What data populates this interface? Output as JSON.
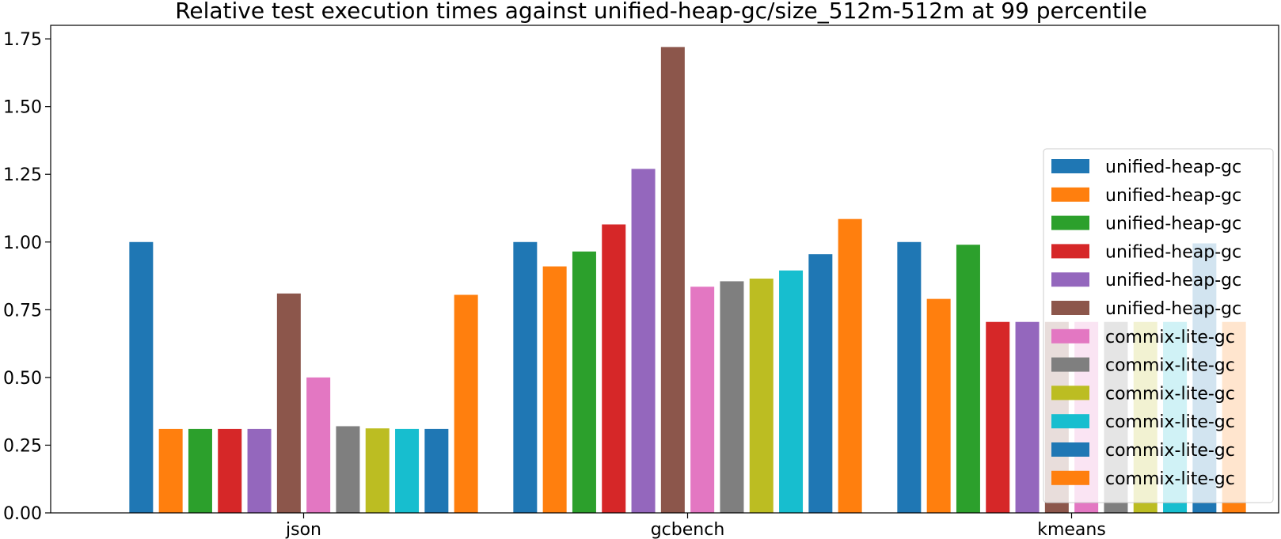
{
  "chart_data": {
    "type": "bar",
    "title": "Relative test execution times against unified-heap-gc/size_512m-512m at 99 percentile",
    "xlabel": "",
    "ylabel": "",
    "categories": [
      "json",
      "gcbench",
      "kmeans"
    ],
    "ylim": [
      0,
      1.8
    ],
    "yticks": [
      0.0,
      0.25,
      0.5,
      0.75,
      1.0,
      1.25,
      1.5,
      1.75
    ],
    "ytick_labels": [
      "0.00",
      "0.25",
      "0.50",
      "0.75",
      "1.00",
      "1.25",
      "1.50",
      "1.75"
    ],
    "grid": false,
    "legend_position": "right",
    "series": [
      {
        "name": "unified-heap-gc",
        "color": "#1f77b4",
        "values": [
          1.0,
          1.0,
          1.0
        ]
      },
      {
        "name": "unified-heap-gc",
        "color": "#ff7f0e",
        "values": [
          0.31,
          0.91,
          0.79
        ]
      },
      {
        "name": "unified-heap-gc",
        "color": "#2ca02c",
        "values": [
          0.31,
          0.965,
          0.99
        ]
      },
      {
        "name": "unified-heap-gc",
        "color": "#d62728",
        "values": [
          0.31,
          1.065,
          0.705
        ]
      },
      {
        "name": "unified-heap-gc",
        "color": "#9467bd",
        "values": [
          0.31,
          1.27,
          0.705
        ]
      },
      {
        "name": "unified-heap-gc",
        "color": "#8c564b",
        "values": [
          0.81,
          1.72,
          0.705
        ]
      },
      {
        "name": "commix-lite-gc",
        "color": "#e377c2",
        "values": [
          0.5,
          0.835,
          0.705
        ]
      },
      {
        "name": "commix-lite-gc",
        "color": "#7f7f7f",
        "values": [
          0.32,
          0.855,
          0.705
        ]
      },
      {
        "name": "commix-lite-gc",
        "color": "#bcbd22",
        "values": [
          0.312,
          0.865,
          0.705
        ]
      },
      {
        "name": "commix-lite-gc",
        "color": "#17becf",
        "values": [
          0.31,
          0.895,
          0.705
        ]
      },
      {
        "name": "commix-lite-gc",
        "color": "#1f77b4",
        "values": [
          0.31,
          0.955,
          0.995
        ]
      },
      {
        "name": "commix-lite-gc",
        "color": "#ff7f0e",
        "values": [
          0.805,
          1.085,
          0.705
        ]
      }
    ]
  }
}
